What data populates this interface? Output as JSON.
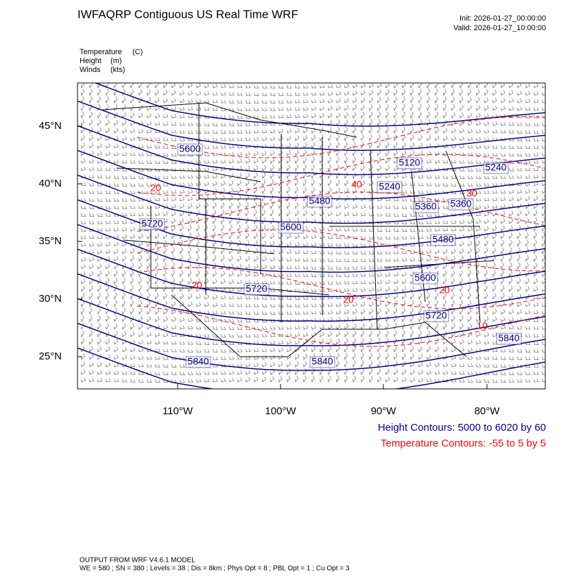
{
  "header": {
    "title": "IWFAQRP Contiguous US Real Time WRF",
    "init": "Init: 2026-01-27_00:00:00",
    "valid": "Valid: 2026-01-27_10:00:00"
  },
  "fields": [
    {
      "name": "Temperature",
      "unit": "(C)"
    },
    {
      "name": "Height",
      "unit": "(m)"
    },
    {
      "name": "Winds",
      "unit": "(kts)"
    }
  ],
  "map": {
    "lat_labels": [
      "45°N",
      "40°N",
      "35°N",
      "30°N",
      "25°N"
    ],
    "lon_labels": [
      "110°W",
      "100°W",
      "90°W",
      "80°W"
    ],
    "height_labels": [
      "5600",
      "5720",
      "5600",
      "5480",
      "5240",
      "5120",
      "5240",
      "5360",
      "5360",
      "5480",
      "5600",
      "5720",
      "5720",
      "5840",
      "5840",
      "5840"
    ],
    "temperature_labels": [
      "20",
      "20",
      "20",
      "20",
      "10",
      "30",
      "40"
    ]
  },
  "legend": {
    "height": "Height Contours: 5000 to 6020 by 60",
    "temperature": "Temperature Contours: -55 to 5 by 5"
  },
  "footer": {
    "line1": "OUTPUT FROM WRF V4.6.1 MODEL",
    "line2": "WE = 580 ; SN = 380 ; Levels = 38 ; Dis = 8km ; Phys Opt = 8 ; PBL Opt = 1 ; Cu Opt = 3"
  }
}
